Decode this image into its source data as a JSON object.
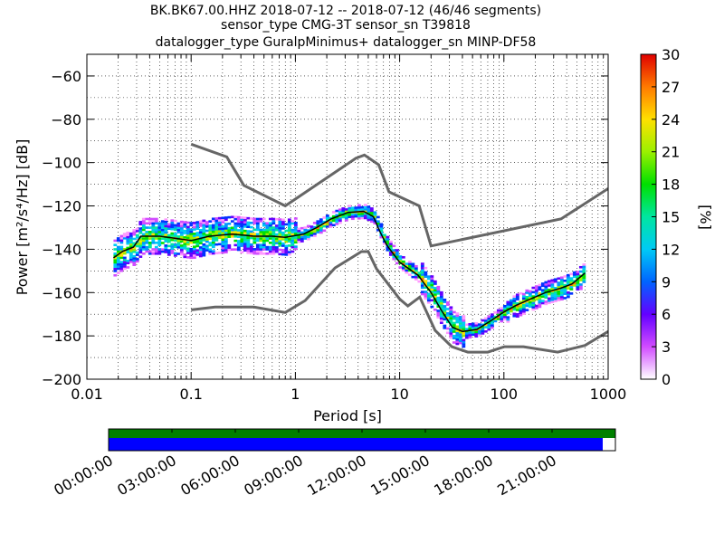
{
  "chart_data": {
    "type": "heatmap",
    "title_lines": [
      "BK.BK67.00.HHZ   2018-07-12 -- 2018-07-12  (46/46 segments)",
      "sensor_type CMG-3T sensor_sn T39818",
      "datalogger_type GuralpMinimus+ datalogger_sn MINP-DF58"
    ],
    "xlabel": "Period [s]",
    "ylabel": "Power [m²/s⁴/Hz] [dB]",
    "xscale": "log",
    "xlim": [
      0.01,
      1000
    ],
    "ylim": [
      -200,
      -50
    ],
    "xticks": [
      {
        "value": 0.01,
        "label": "0.01"
      },
      {
        "value": 0.1,
        "label": "0.1"
      },
      {
        "value": 1,
        "label": "1"
      },
      {
        "value": 10,
        "label": "10"
      },
      {
        "value": 100,
        "label": "100"
      },
      {
        "value": 1000,
        "label": "1000"
      }
    ],
    "yticks": [
      {
        "value": -60,
        "label": "−60"
      },
      {
        "value": -80,
        "label": "−80"
      },
      {
        "value": -100,
        "label": "−100"
      },
      {
        "value": -120,
        "label": "−120"
      },
      {
        "value": -140,
        "label": "−140"
      },
      {
        "value": -160,
        "label": "−160"
      },
      {
        "value": -180,
        "label": "−180"
      },
      {
        "value": -200,
        "label": "−200"
      }
    ],
    "grid": "dotted",
    "colorbar": {
      "label": "[%]",
      "range": [
        0,
        30
      ],
      "ticks": [
        {
          "value": 0,
          "label": "0"
        },
        {
          "value": 3,
          "label": "3"
        },
        {
          "value": 6,
          "label": "6"
        },
        {
          "value": 9,
          "label": "9"
        },
        {
          "value": 12,
          "label": "12"
        },
        {
          "value": 15,
          "label": "15"
        },
        {
          "value": 18,
          "label": "18"
        },
        {
          "value": 21,
          "label": "21"
        },
        {
          "value": 24,
          "label": "24"
        },
        {
          "value": 27,
          "label": "27"
        },
        {
          "value": 30,
          "label": "30"
        }
      ]
    },
    "nhnm": {
      "color": "#666666",
      "points": [
        [
          0.1,
          -91.5
        ],
        [
          0.22,
          -97.4
        ],
        [
          0.32,
          -110.5
        ],
        [
          0.8,
          -120
        ],
        [
          3.8,
          -98
        ],
        [
          4.6,
          -96.5
        ],
        [
          6.3,
          -101
        ],
        [
          7.9,
          -113.5
        ],
        [
          15.4,
          -120
        ],
        [
          20,
          -138.5
        ],
        [
          354,
          -126
        ],
        [
          1000,
          -112
        ]
      ]
    },
    "nlnm": {
      "color": "#666666",
      "points": [
        [
          0.1,
          -168
        ],
        [
          0.17,
          -166.7
        ],
        [
          0.4,
          -166.7
        ],
        [
          0.8,
          -169.2
        ],
        [
          1.24,
          -163.7
        ],
        [
          2.4,
          -148.6
        ],
        [
          4.3,
          -141.1
        ],
        [
          5.0,
          -141.1
        ],
        [
          6.0,
          -149
        ],
        [
          10,
          -163
        ],
        [
          12,
          -166.2
        ],
        [
          15.6,
          -162.1
        ],
        [
          21.9,
          -177.5
        ],
        [
          31.6,
          -185
        ],
        [
          45,
          -187.5
        ],
        [
          70,
          -187.5
        ],
        [
          101,
          -185
        ],
        [
          154,
          -185
        ],
        [
          328,
          -187.5
        ],
        [
          600,
          -184.4
        ],
        [
          1000,
          -178
        ]
      ]
    },
    "mean_line": {
      "color": "#000000",
      "points": [
        [
          0.018,
          -144
        ],
        [
          0.022,
          -141
        ],
        [
          0.028,
          -139
        ],
        [
          0.033,
          -134
        ],
        [
          0.05,
          -134
        ],
        [
          0.1,
          -136
        ],
        [
          0.15,
          -134
        ],
        [
          0.25,
          -133
        ],
        [
          0.4,
          -134
        ],
        [
          0.6,
          -134
        ],
        [
          0.8,
          -134.5
        ],
        [
          1.2,
          -133
        ],
        [
          1.6,
          -130
        ],
        [
          2.2,
          -126
        ],
        [
          3.2,
          -123
        ],
        [
          4.5,
          -122.5
        ],
        [
          5.6,
          -125
        ],
        [
          6.5,
          -132
        ],
        [
          7.5,
          -138
        ],
        [
          10,
          -146
        ],
        [
          15,
          -152
        ],
        [
          20,
          -160
        ],
        [
          25,
          -168
        ],
        [
          32,
          -176
        ],
        [
          40,
          -178
        ],
        [
          55,
          -177
        ],
        [
          75,
          -173
        ],
        [
          100,
          -169
        ],
        [
          130,
          -166
        ],
        [
          180,
          -163
        ],
        [
          250,
          -160
        ],
        [
          350,
          -158
        ],
        [
          450,
          -156
        ],
        [
          600,
          -151
        ]
      ]
    },
    "timeline": {
      "labels": [
        "00:00:00",
        "03:00:00",
        "06:00:00",
        "09:00:00",
        "12:00:00",
        "15:00:00",
        "18:00:00",
        "21:00:00"
      ],
      "hours": [
        0,
        3,
        6,
        9,
        12,
        15,
        18,
        21
      ],
      "span_hours": 24,
      "data_color": "#008000",
      "psd_color": "#0000ff",
      "data_coverage": 1.0,
      "psd_coverage": 0.975
    }
  }
}
